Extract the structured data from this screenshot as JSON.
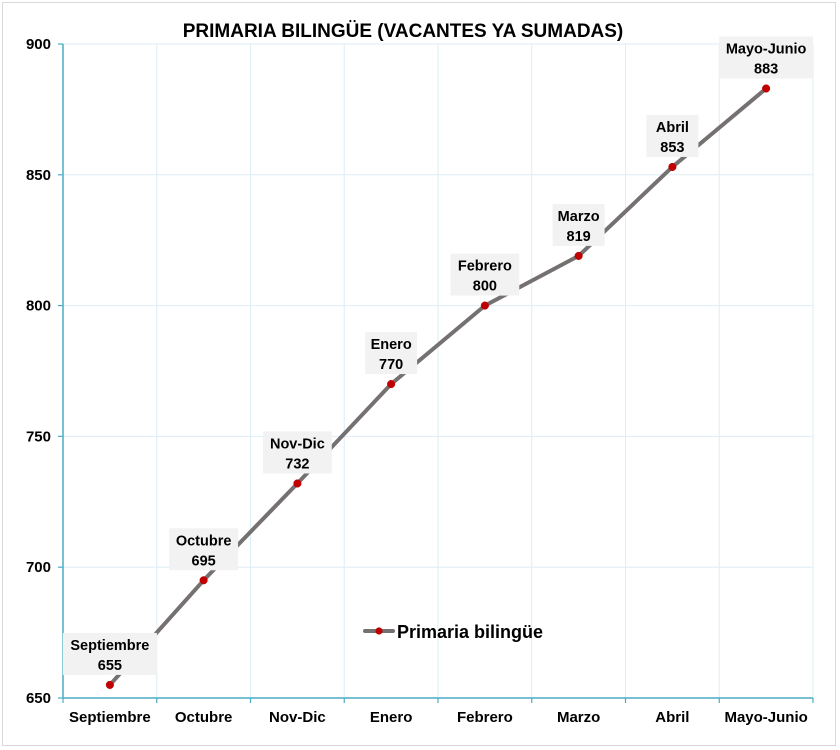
{
  "chart_data": {
    "type": "line",
    "title": "PRIMARIA BILINGÜE (VACANTES YA SUMADAS)",
    "xlabel": "",
    "ylabel": "",
    "categories": [
      "Septiembre",
      "Octubre",
      "Nov-Dic",
      "Enero",
      "Febrero",
      "Marzo",
      "Abril",
      "Mayo-Junio"
    ],
    "series": [
      {
        "name": "Primaria bilingüe",
        "values": [
          655,
          695,
          732,
          770,
          800,
          819,
          853,
          883
        ],
        "line_color": "#767171",
        "marker_color": "#c00000"
      }
    ],
    "ylim": [
      650,
      900
    ],
    "yticks": [
      650,
      700,
      750,
      800,
      850,
      900
    ],
    "grid": true,
    "legend_position": "inside-bottom-center",
    "data_labels": true,
    "colors": {
      "axis": "#4bacc6",
      "grid": "#ddeef6",
      "label_box": "#f2f2f2"
    }
  }
}
